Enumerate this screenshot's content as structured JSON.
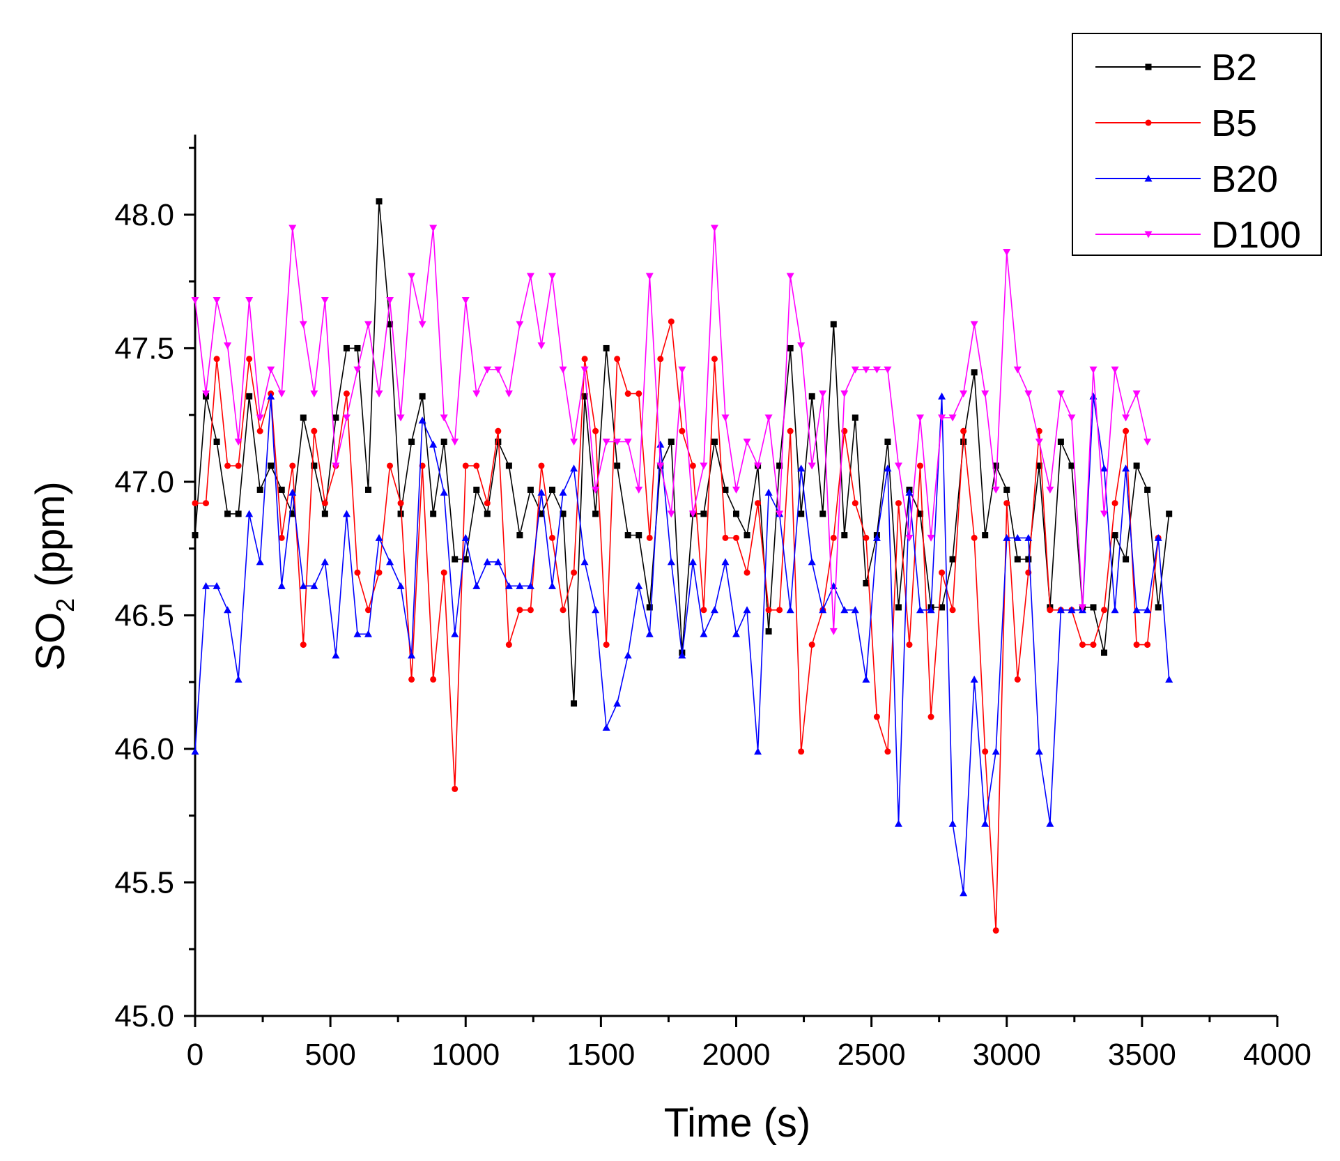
{
  "chart_data": {
    "type": "line",
    "title": "",
    "xlabel": "Time (s)",
    "ylabel_main": "SO",
    "ylabel_sub": "2",
    "ylabel_units": " (ppm)",
    "xlim": [
      0,
      4000
    ],
    "ylim": [
      45.0,
      48.3
    ],
    "x_major_ticks": [
      0,
      500,
      1000,
      1500,
      2000,
      2500,
      3000,
      3500,
      4000
    ],
    "x_tick_labels": [
      "0",
      "500",
      "1000",
      "1500",
      "2000",
      "2500",
      "3000",
      "3500",
      "4000"
    ],
    "y_major_ticks": [
      45.0,
      45.5,
      46.0,
      46.5,
      47.0,
      47.5,
      48.0
    ],
    "y_tick_labels": [
      "45.0",
      "45.5",
      "46.0",
      "46.5",
      "47.0",
      "47.5",
      "48.0"
    ],
    "grid": false,
    "legend_position": "top-right",
    "x_step": 40,
    "series": [
      {
        "name": "B2",
        "color": "#000000",
        "marker": "square",
        "values": [
          46.8,
          47.32,
          47.15,
          46.88,
          46.88,
          47.32,
          46.97,
          47.06,
          46.97,
          46.88,
          47.24,
          47.06,
          46.88,
          47.24,
          47.5,
          47.5,
          46.97,
          48.05,
          47.59,
          46.88,
          47.15,
          47.32,
          46.88,
          47.15,
          46.71,
          46.71,
          46.97,
          46.88,
          47.15,
          47.06,
          46.8,
          46.97,
          46.88,
          46.97,
          46.88,
          46.17,
          47.32,
          46.88,
          47.5,
          47.06,
          46.8,
          46.8,
          46.53,
          47.06,
          47.15,
          46.36,
          46.88,
          46.88,
          47.15,
          46.97,
          46.88,
          46.8,
          47.06,
          46.44,
          47.06,
          47.5,
          46.88,
          47.32,
          46.88,
          47.59,
          46.8,
          47.24,
          46.62,
          46.8,
          47.15,
          46.53,
          46.97,
          46.88,
          46.53,
          46.53,
          46.71,
          47.15,
          47.41,
          46.8,
          47.06,
          46.97,
          46.71,
          46.71,
          47.06,
          46.53,
          47.15,
          47.06,
          46.53,
          46.53,
          46.36,
          46.8,
          46.71,
          47.06,
          46.97,
          46.53,
          46.88
        ]
      },
      {
        "name": "B5",
        "color": "#ff0000",
        "marker": "circle",
        "values": [
          46.92,
          46.92,
          47.46,
          47.06,
          47.06,
          47.46,
          47.19,
          47.33,
          46.79,
          47.06,
          46.39,
          47.19,
          46.92,
          47.06,
          47.33,
          46.66,
          46.52,
          46.66,
          47.06,
          46.92,
          46.26,
          47.06,
          46.26,
          46.66,
          45.85,
          47.06,
          47.06,
          46.92,
          47.19,
          46.39,
          46.52,
          46.52,
          47.06,
          46.79,
          46.52,
          46.66,
          47.46,
          47.19,
          46.39,
          47.46,
          47.33,
          47.33,
          46.79,
          47.46,
          47.6,
          47.19,
          47.06,
          46.52,
          47.46,
          46.79,
          46.79,
          46.66,
          46.92,
          46.52,
          46.52,
          47.19,
          45.99,
          46.39,
          46.52,
          46.79,
          47.19,
          46.92,
          46.79,
          46.12,
          45.99,
          46.92,
          46.39,
          47.06,
          46.12,
          46.66,
          46.52,
          47.19,
          46.79,
          45.99,
          45.32,
          46.92,
          46.26,
          46.66,
          47.19,
          46.52,
          46.52,
          46.52,
          46.39,
          46.39,
          46.52,
          46.92,
          47.19,
          46.39,
          46.39,
          46.79
        ]
      },
      {
        "name": "B20",
        "color": "#0000ff",
        "marker": "triangle-up",
        "values": [
          45.99,
          46.61,
          46.61,
          46.52,
          46.26,
          46.88,
          46.7,
          47.32,
          46.61,
          46.96,
          46.61,
          46.61,
          46.7,
          46.35,
          46.88,
          46.43,
          46.43,
          46.79,
          46.7,
          46.61,
          46.35,
          47.23,
          47.14,
          46.96,
          46.43,
          46.79,
          46.61,
          46.7,
          46.7,
          46.61,
          46.61,
          46.61,
          46.96,
          46.61,
          46.96,
          47.05,
          46.7,
          46.52,
          46.08,
          46.17,
          46.35,
          46.61,
          46.43,
          47.14,
          46.7,
          46.35,
          46.7,
          46.43,
          46.52,
          46.7,
          46.43,
          46.52,
          45.99,
          46.96,
          46.88,
          46.52,
          47.05,
          46.7,
          46.52,
          46.61,
          46.52,
          46.52,
          46.26,
          46.79,
          47.05,
          45.72,
          46.96,
          46.52,
          46.52,
          47.32,
          45.72,
          45.46,
          46.26,
          45.72,
          45.99,
          46.79,
          46.79,
          46.79,
          45.99,
          45.72,
          46.52,
          46.52,
          46.52,
          47.32,
          47.05,
          46.52,
          47.05,
          46.52,
          46.52,
          46.79,
          46.26
        ]
      },
      {
        "name": "D100",
        "color": "#ff00ff",
        "marker": "triangle-down",
        "values": [
          47.68,
          47.33,
          47.68,
          47.51,
          47.15,
          47.68,
          47.24,
          47.42,
          47.33,
          47.95,
          47.59,
          47.33,
          47.68,
          47.06,
          47.24,
          47.42,
          47.59,
          47.33,
          47.68,
          47.24,
          47.77,
          47.59,
          47.95,
          47.24,
          47.15,
          47.68,
          47.33,
          47.42,
          47.42,
          47.33,
          47.59,
          47.77,
          47.51,
          47.77,
          47.42,
          47.15,
          47.42,
          46.97,
          47.15,
          47.15,
          47.15,
          46.97,
          47.77,
          47.06,
          46.88,
          47.42,
          46.88,
          47.06,
          47.95,
          47.24,
          46.97,
          47.15,
          47.06,
          47.24,
          46.88,
          47.77,
          47.51,
          47.06,
          47.33,
          46.44,
          47.33,
          47.42,
          47.42,
          47.42,
          47.42,
          47.06,
          46.79,
          47.24,
          46.79,
          47.24,
          47.24,
          47.33,
          47.59,
          47.33,
          46.97,
          47.86,
          47.42,
          47.33,
          47.15,
          46.97,
          47.33,
          47.24,
          46.53,
          47.42,
          46.88,
          47.42,
          47.24,
          47.33,
          47.15
        ]
      }
    ]
  }
}
